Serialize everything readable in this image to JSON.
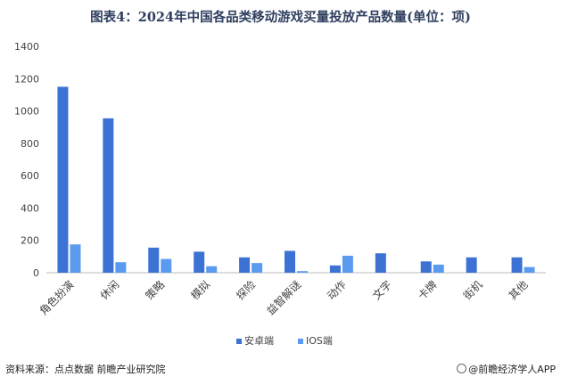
{
  "chart_data": {
    "type": "bar",
    "title": "图表4：2024年中国各品类移动游戏买量投放产品数量(单位：项)",
    "categories": [
      "角色扮演",
      "休闲",
      "策略",
      "模拟",
      "探险",
      "益智解谜",
      "动作",
      "文字",
      "卡牌",
      "街机",
      "其他"
    ],
    "series": [
      {
        "name": "安卓端",
        "values": [
          1150,
          955,
          155,
          130,
          95,
          135,
          45,
          120,
          70,
          95,
          95
        ],
        "color": "#3b72d4"
      },
      {
        "name": "IOS端",
        "values": [
          175,
          65,
          85,
          40,
          60,
          10,
          105,
          0,
          50,
          0,
          35
        ],
        "color": "#5b9bef"
      }
    ],
    "ylim": [
      0,
      1400
    ],
    "yticks": [
      0,
      200,
      400,
      600,
      800,
      1000,
      1200,
      1400
    ],
    "grid": false,
    "legend_position": "bottom-center"
  },
  "footer": {
    "source": "资料来源：点点数据 前瞻产业研究院",
    "brand": "@前瞻经济学人APP"
  }
}
